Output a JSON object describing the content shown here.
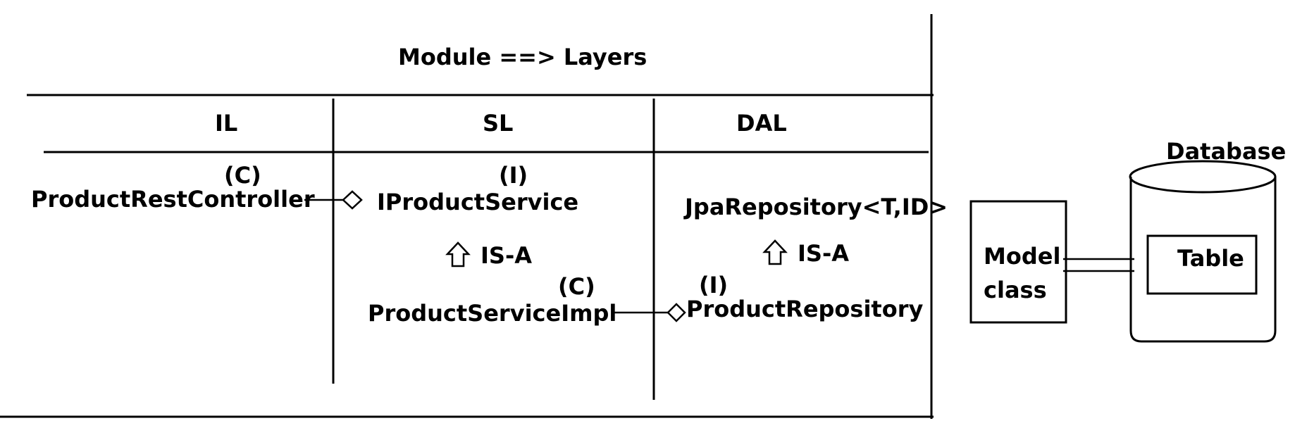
{
  "title": "Module ==> Layers",
  "layers": {
    "il": "IL",
    "sl": "SL",
    "dal": "DAL"
  },
  "il_section": {
    "controller_tag": "(C)",
    "controller_name": "ProductRestController"
  },
  "sl_section": {
    "interface_tag": "(I)",
    "interface_name": "IProductService",
    "relation": "IS-A",
    "impl_tag": "(C)",
    "impl_name": "ProductServiceImpl"
  },
  "dal_section": {
    "base_repo": "JpaRepository<T,ID>",
    "relation": "IS-A",
    "repo_tag": "(I)",
    "repo_name": "ProductRepository"
  },
  "model": {
    "line1": "Model",
    "line2": "class"
  },
  "database": {
    "label": "Database",
    "table": "Table"
  },
  "colors": {
    "ink": "#000000",
    "background": "#ffffff"
  }
}
